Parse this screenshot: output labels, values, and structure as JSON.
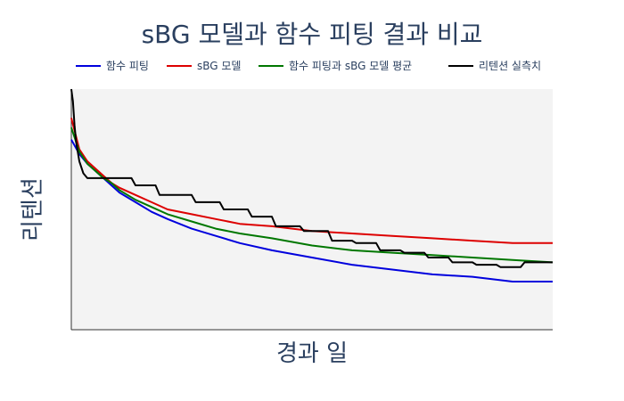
{
  "chart_data": {
    "type": "line",
    "title": "sBG 모델과 함수 피팅 결과 비교",
    "xlabel": "경과 일",
    "ylabel": "리텐션",
    "x_ticks_shown": false,
    "y_ticks_shown": false,
    "grid": false,
    "legend_position": "top",
    "x_range": [
      0,
      60
    ],
    "y_range": [
      0,
      1
    ],
    "background": "#f3f3f3",
    "series": [
      {
        "name": "함수 피팅",
        "color": "#0000dd",
        "x": [
          0,
          1,
          2,
          3,
          4,
          5,
          6,
          8,
          10,
          12,
          15,
          18,
          21,
          25,
          30,
          35,
          40,
          45,
          50,
          55,
          60
        ],
        "y": [
          0.79,
          0.73,
          0.69,
          0.66,
          0.63,
          0.6,
          0.57,
          0.53,
          0.49,
          0.46,
          0.42,
          0.39,
          0.36,
          0.33,
          0.3,
          0.27,
          0.25,
          0.23,
          0.22,
          0.2,
          0.2
        ]
      },
      {
        "name": "sBG 모델",
        "color": "#dd0000",
        "x": [
          0,
          1,
          2,
          3,
          4,
          5,
          6,
          8,
          10,
          12,
          15,
          18,
          21,
          25,
          30,
          35,
          40,
          45,
          50,
          55,
          60
        ],
        "y": [
          0.88,
          0.75,
          0.7,
          0.67,
          0.64,
          0.61,
          0.59,
          0.56,
          0.53,
          0.5,
          0.48,
          0.46,
          0.44,
          0.43,
          0.41,
          0.4,
          0.39,
          0.38,
          0.37,
          0.36,
          0.36
        ]
      },
      {
        "name": "함수 피팅과 sBG 모델 평균",
        "color": "#007700",
        "x": [
          0,
          1,
          2,
          3,
          4,
          5,
          6,
          8,
          10,
          12,
          15,
          18,
          21,
          25,
          30,
          35,
          40,
          45,
          50,
          55,
          60
        ],
        "y": [
          0.84,
          0.74,
          0.69,
          0.66,
          0.63,
          0.61,
          0.58,
          0.54,
          0.51,
          0.48,
          0.45,
          0.42,
          0.4,
          0.38,
          0.35,
          0.33,
          0.32,
          0.31,
          0.3,
          0.29,
          0.28
        ]
      },
      {
        "name": "리텐션 실측치",
        "color": "#000000",
        "x": [
          0,
          0.2,
          0.4,
          0.6,
          1,
          1.5,
          2,
          7.5,
          8,
          10.5,
          11,
          15,
          15.5,
          18.5,
          19,
          22,
          22.5,
          25,
          25.5,
          28.5,
          29,
          32,
          32.5,
          35,
          35.5,
          38,
          38.5,
          41,
          41.5,
          44,
          44.5,
          47,
          47.5,
          50,
          50.5,
          53,
          53.5,
          56,
          56.5,
          60
        ],
        "y": [
          1.0,
          0.95,
          0.85,
          0.78,
          0.7,
          0.65,
          0.63,
          0.63,
          0.6,
          0.6,
          0.56,
          0.56,
          0.53,
          0.53,
          0.5,
          0.5,
          0.47,
          0.47,
          0.43,
          0.43,
          0.41,
          0.41,
          0.37,
          0.37,
          0.36,
          0.36,
          0.33,
          0.33,
          0.32,
          0.32,
          0.3,
          0.3,
          0.28,
          0.28,
          0.27,
          0.27,
          0.26,
          0.26,
          0.28,
          0.28
        ]
      }
    ]
  }
}
